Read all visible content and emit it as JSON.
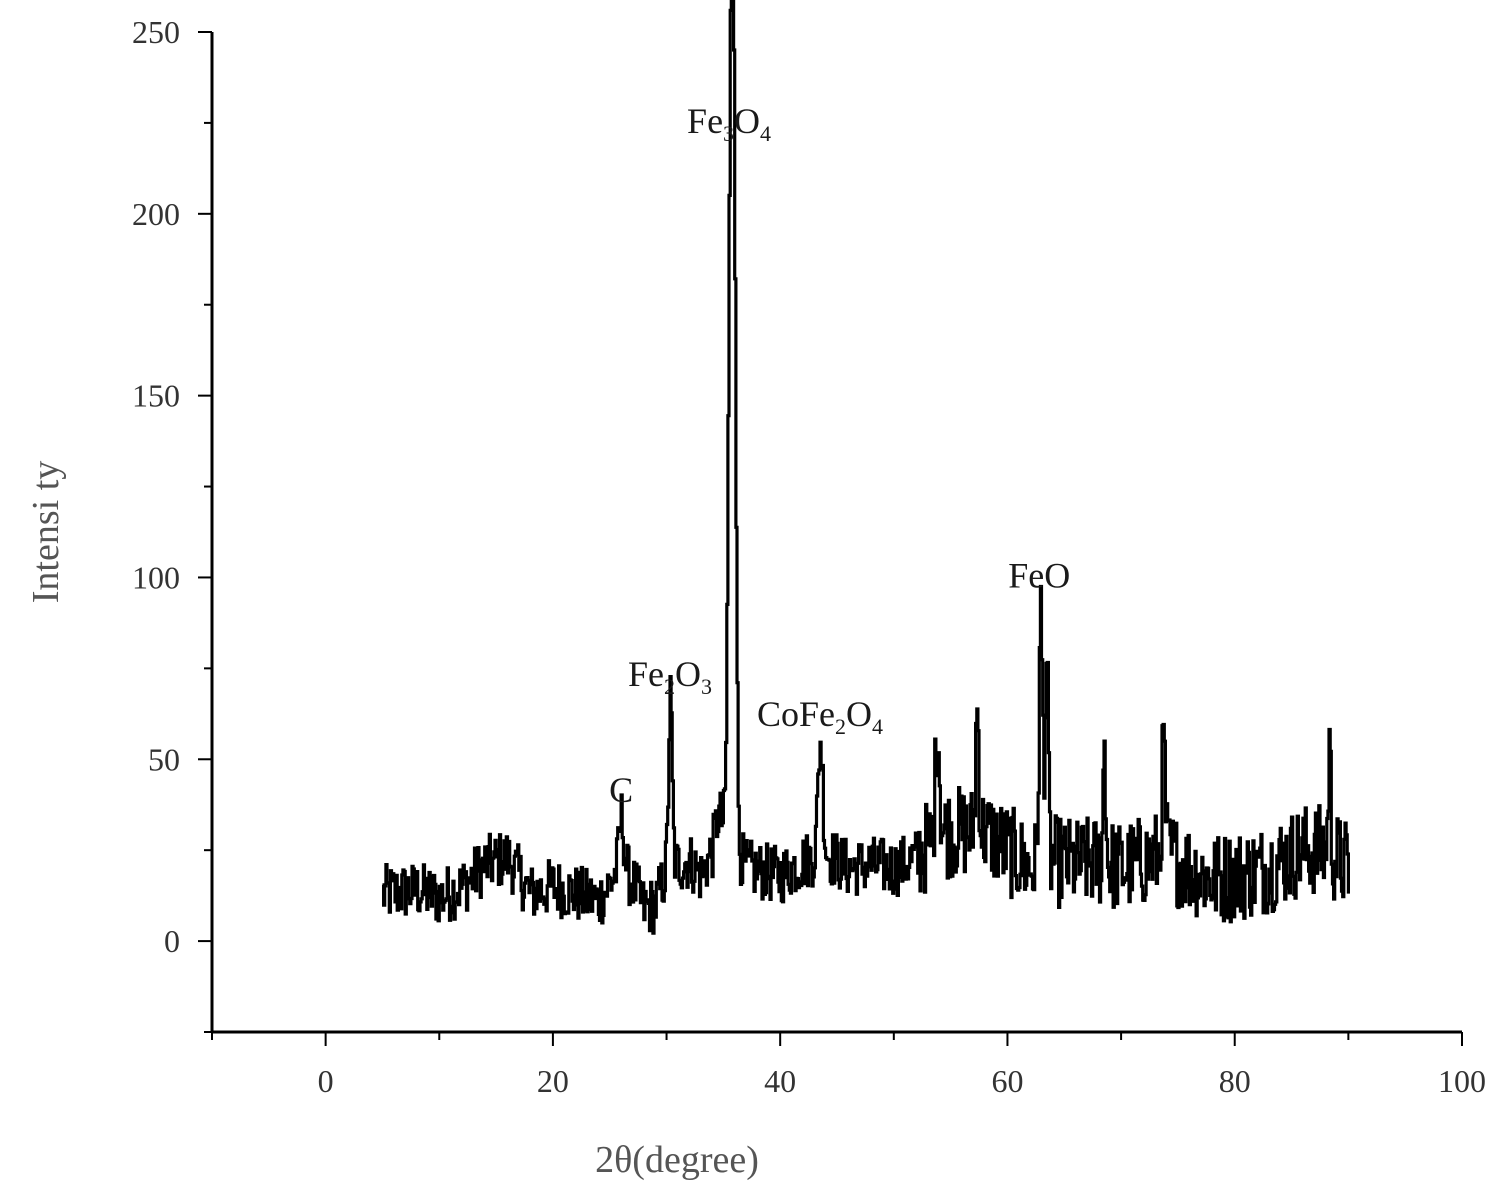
{
  "chart_data": {
    "type": "line",
    "title": "",
    "xlabel": "2θ(degree)",
    "ylabel": "Intensi ty",
    "xlim": [
      -10,
      100
    ],
    "ylim": [
      -25,
      250
    ],
    "xticks": [
      0,
      20,
      40,
      60,
      80,
      100
    ],
    "yticks": [
      0,
      50,
      100,
      150,
      200,
      250
    ],
    "grid": false,
    "legend": "none",
    "line_color": "#000000",
    "annotations": [
      {
        "text": "C",
        "sub": [],
        "x": 26,
        "y": 36
      },
      {
        "text": "Fe2O3",
        "sub": [
          2,
          4
        ],
        "x": 30.3,
        "y": 68
      },
      {
        "text": "Fe3O4",
        "sub": [
          2,
          4
        ],
        "x": 35.5,
        "y": 220
      },
      {
        "text": "CoFe2O4",
        "sub": [
          4,
          6
        ],
        "x": 43.5,
        "y": 57
      },
      {
        "text": "FeO",
        "sub": [],
        "x": 62.8,
        "y": 95
      }
    ],
    "series": [
      {
        "baseline_points": [
          [
            5,
            13
          ],
          [
            8,
            14
          ],
          [
            10,
            12
          ],
          [
            12,
            15
          ],
          [
            14,
            21
          ],
          [
            16,
            23
          ],
          [
            18,
            13
          ],
          [
            20,
            15
          ],
          [
            22,
            13
          ],
          [
            24,
            11
          ],
          [
            25,
            16
          ],
          [
            26,
            21
          ],
          [
            27,
            16
          ],
          [
            28,
            9
          ],
          [
            29,
            10
          ],
          [
            30,
            20
          ],
          [
            32,
            22
          ],
          [
            33,
            18
          ],
          [
            34,
            25
          ],
          [
            34.5,
            35
          ],
          [
            37,
            20
          ],
          [
            40,
            18
          ],
          [
            42,
            22
          ],
          [
            44,
            24
          ],
          [
            46,
            20
          ],
          [
            48,
            21
          ],
          [
            50,
            20
          ],
          [
            52,
            23
          ],
          [
            54,
            30
          ],
          [
            56,
            30
          ],
          [
            58,
            30
          ],
          [
            60,
            25
          ],
          [
            62,
            20
          ],
          [
            64,
            22
          ],
          [
            66,
            21
          ],
          [
            68,
            22
          ],
          [
            70,
            20
          ],
          [
            72,
            22
          ],
          [
            74,
            24
          ],
          [
            76,
            20
          ],
          [
            78,
            17
          ],
          [
            80,
            18
          ],
          [
            82,
            19
          ],
          [
            84,
            22
          ],
          [
            86,
            25
          ],
          [
            88,
            25
          ],
          [
            90,
            20
          ]
        ],
        "peaks": [
          [
            26,
            34,
            0.3
          ],
          [
            30.3,
            67,
            0.22
          ],
          [
            35.6,
            214,
            0.28
          ],
          [
            35.9,
            190,
            0.25
          ],
          [
            43.5,
            55,
            0.3
          ],
          [
            53.8,
            59,
            0.25
          ],
          [
            57.3,
            64,
            0.2
          ],
          [
            62.9,
            89,
            0.22
          ],
          [
            63.4,
            76,
            0.2
          ],
          [
            68.5,
            57,
            0.15
          ],
          [
            73.7,
            54,
            0.2
          ],
          [
            88.3,
            54,
            0.15
          ]
        ],
        "noise_amplitude": 8,
        "x_start": 5,
        "x_end": 90,
        "x_step": 0.1
      }
    ]
  }
}
